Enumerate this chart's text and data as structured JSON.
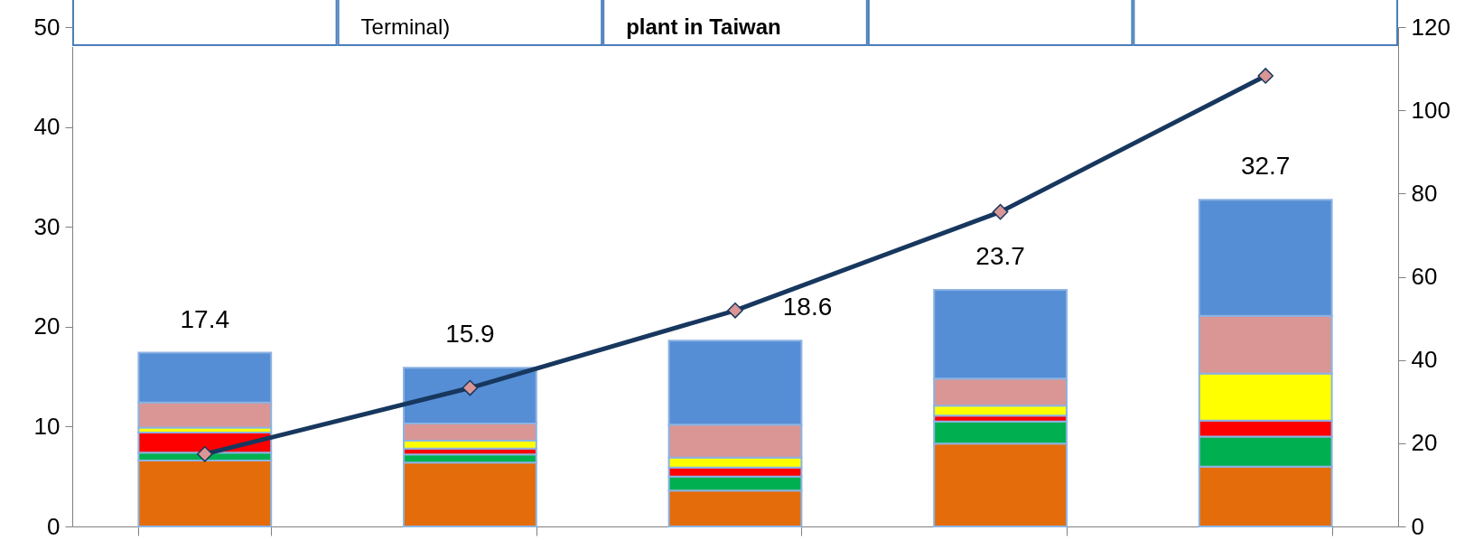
{
  "chart_data": {
    "type": "bar",
    "stacked": true,
    "categories": [
      null,
      null,
      null,
      null,
      null
    ],
    "series": [
      {
        "color": "#e46c0a",
        "values": [
          6.6,
          6.4,
          3.6,
          8.3,
          6.0
        ]
      },
      {
        "color": "#00b050",
        "values": [
          0.8,
          0.8,
          1.4,
          2.2,
          3.0
        ]
      },
      {
        "color": "#ff0000",
        "values": [
          2.0,
          0.6,
          0.9,
          0.6,
          1.6
        ]
      },
      {
        "color": "#ffff00",
        "values": [
          0.5,
          0.8,
          1.0,
          1.0,
          4.7
        ]
      },
      {
        "color": "#d99694",
        "values": [
          2.5,
          1.7,
          3.3,
          2.7,
          5.8
        ]
      },
      {
        "color": "#558ed5",
        "values": [
          5.0,
          5.6,
          8.4,
          8.9,
          11.6
        ]
      },
      {
        "type": "line",
        "axis": "y2",
        "color": "#17375e",
        "marker": "diamond",
        "line_style": "solid",
        "values": [
          17.4,
          33.3,
          51.9,
          75.6,
          108.3
        ]
      }
    ],
    "totals": [
      "17.4",
      "15.9",
      "18.6",
      "23.7",
      "32.7"
    ],
    "ylim": [
      0,
      50
    ],
    "yticks": [
      0,
      10,
      20,
      30,
      40,
      50
    ],
    "y2lim": [
      0,
      120
    ],
    "y2ticks": [
      0,
      20,
      40,
      60,
      80,
      100,
      120
    ],
    "grid": false,
    "annotations": [
      "Terminal)",
      "plant in Taiwan"
    ]
  }
}
